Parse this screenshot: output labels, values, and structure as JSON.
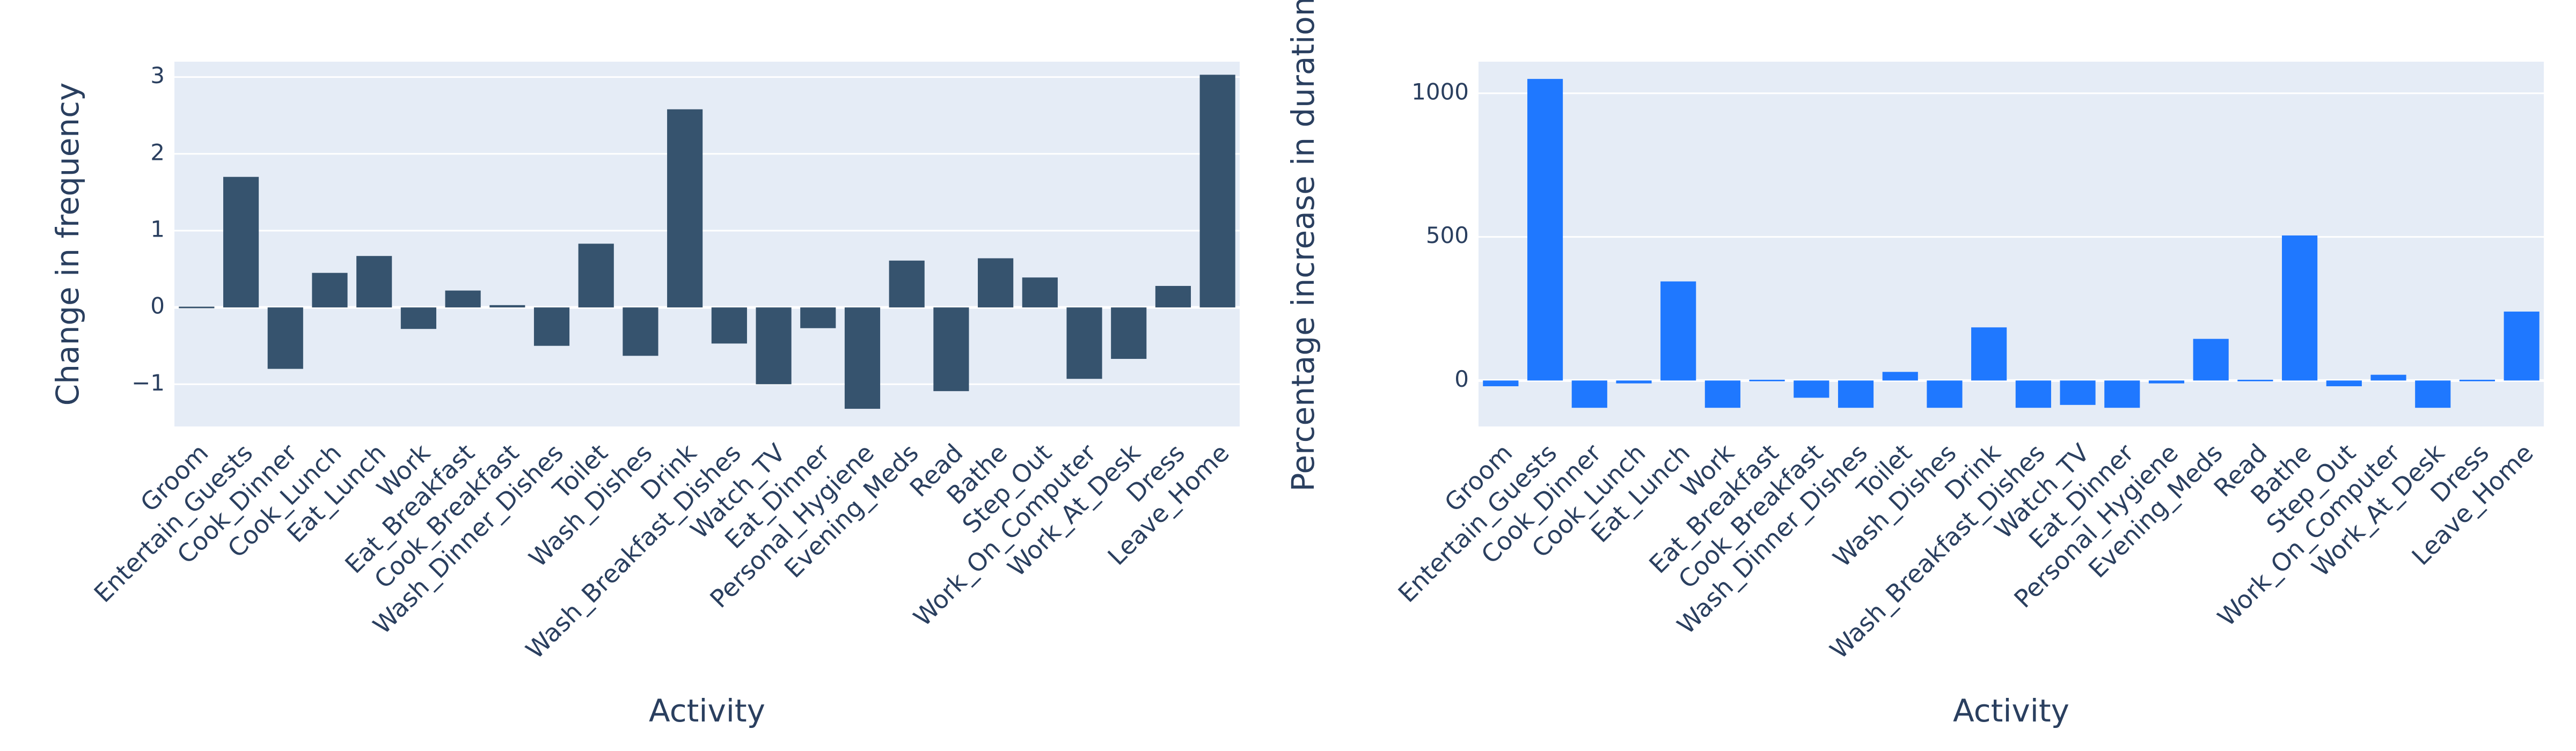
{
  "chart_data": [
    {
      "type": "bar",
      "color": "#36536e",
      "xlabel": "Activity",
      "ylabel": "Change in frequency",
      "ylim": [
        -1.55,
        3.2
      ],
      "yticks": [
        -1,
        0,
        1,
        2,
        3
      ],
      "ytick_labels": [
        "−1",
        "0",
        "1",
        "2",
        "3"
      ],
      "grid": true,
      "categories": [
        "Groom",
        "Entertain_Guests",
        "Cook_Dinner",
        "Cook_Lunch",
        "Eat_Lunch",
        "Work",
        "Eat_Breakfast",
        "Cook_Breakfast",
        "Wash_Dinner_Dishes",
        "Toilet",
        "Wash_Dishes",
        "Drink",
        "Wash_Breakfast_Dishes",
        "Watch_TV",
        "Eat_Dinner",
        "Personal_Hygiene",
        "Evening_Meds",
        "Read",
        "Bathe",
        "Step_Out",
        "Work_On_Computer",
        "Work_At_Desk",
        "Dress",
        "Leave_Home"
      ],
      "values": [
        -0.02,
        1.7,
        -0.8,
        0.45,
        0.67,
        -0.28,
        0.22,
        0.03,
        -0.5,
        0.83,
        -0.63,
        2.58,
        -0.47,
        -1.0,
        -0.27,
        -1.32,
        0.61,
        -1.09,
        0.64,
        0.39,
        -0.93,
        -0.67,
        0.28,
        3.03
      ]
    },
    {
      "type": "bar",
      "color": "#1f78ff",
      "xlabel": "Activity",
      "ylabel": "Percentage increase in duration",
      "ylim": [
        -160,
        1110
      ],
      "yticks": [
        0,
        500,
        1000
      ],
      "ytick_labels": [
        "0",
        "500",
        "1000"
      ],
      "grid": true,
      "categories": [
        "Groom",
        "Entertain_Guests",
        "Cook_Dinner",
        "Cook_Lunch",
        "Eat_Lunch",
        "Work",
        "Eat_Breakfast",
        "Cook_Breakfast",
        "Wash_Dinner_Dishes",
        "Toilet",
        "Wash_Dishes",
        "Drink",
        "Wash_Breakfast_Dishes",
        "Watch_TV",
        "Eat_Dinner",
        "Personal_Hygiene",
        "Evening_Meds",
        "Read",
        "Bathe",
        "Step_Out",
        "Work_On_Computer",
        "Work_At_Desk",
        "Dress",
        "Leave_Home"
      ],
      "values": [
        -20,
        1050,
        -95,
        -10,
        345,
        -95,
        5,
        -60,
        -95,
        30,
        -95,
        185,
        -95,
        -85,
        -95,
        -10,
        145,
        0,
        505,
        -20,
        20,
        -95,
        0,
        240
      ]
    }
  ]
}
